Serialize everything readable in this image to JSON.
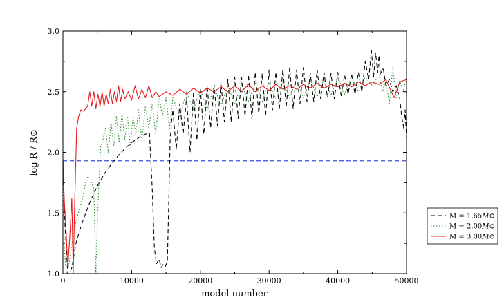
{
  "chart_data": {
    "type": "line",
    "title": "",
    "xlabel": "model number",
    "ylabel": "log R / R⊙",
    "xlim": [
      0,
      50000
    ],
    "ylim": [
      1.0,
      3.0
    ],
    "x_ticks": [
      0,
      10000,
      20000,
      30000,
      40000,
      50000
    ],
    "x_tick_labels": [
      "0",
      "10000",
      "20000",
      "30000",
      "40000",
      "50000"
    ],
    "y_ticks": [
      1.0,
      1.5,
      2.0,
      2.5,
      3.0
    ],
    "y_tick_labels": [
      "1.0",
      "1.5",
      "2.0",
      "2.5",
      "3.0"
    ],
    "grid": false,
    "legend_position": "outside-right",
    "reference_line": {
      "y": 1.93,
      "color": "#3a4ee6",
      "style": "dashed"
    },
    "series": [
      {
        "name": "M = 1.65M⊙",
        "label_main": "M = 1.65",
        "label_sym": "M⊙",
        "color": "#000000",
        "style": "dashed",
        "x": [
          0,
          300,
          700,
          1000,
          1300,
          1600,
          1900,
          2400,
          3000,
          4000,
          5000,
          6000,
          7000,
          8000,
          9000,
          10000,
          11000,
          12000,
          12600,
          13000,
          13300,
          13600,
          14000,
          14300,
          14600,
          14900,
          15200,
          15400,
          15600,
          15800,
          16000,
          16500,
          17000,
          17500,
          18000,
          18500,
          19000,
          19500,
          20000,
          20500,
          21000,
          21500,
          22000,
          22500,
          23000,
          23500,
          24000,
          24500,
          25000,
          25500,
          26000,
          26500,
          27000,
          27500,
          28000,
          28500,
          29000,
          29500,
          30000,
          30500,
          31000,
          31500,
          32000,
          32500,
          33000,
          33500,
          34000,
          34500,
          35000,
          35500,
          36000,
          36500,
          37000,
          37500,
          38000,
          38500,
          39000,
          39500,
          40000,
          40500,
          41000,
          41500,
          42000,
          42500,
          43000,
          43500,
          44000,
          44500,
          44900,
          45200,
          45500,
          45800,
          46000,
          46200,
          46600,
          47000,
          47500,
          48000,
          48500,
          49000,
          49300,
          49600,
          49800,
          50000
        ],
        "y": [
          1.93,
          1.4,
          1.0,
          1.0,
          1.05,
          1.15,
          1.25,
          1.35,
          1.45,
          1.6,
          1.72,
          1.82,
          1.9,
          1.97,
          2.03,
          2.08,
          2.12,
          2.15,
          2.16,
          1.7,
          1.22,
          1.08,
          1.12,
          1.05,
          1.08,
          1.06,
          1.1,
          1.6,
          2.1,
          2.25,
          2.35,
          2.02,
          2.4,
          2.15,
          2.45,
          2.0,
          2.5,
          2.1,
          2.52,
          2.15,
          2.55,
          2.2,
          2.56,
          2.22,
          2.58,
          2.25,
          2.6,
          2.25,
          2.62,
          2.28,
          2.62,
          2.3,
          2.64,
          2.28,
          2.66,
          2.32,
          2.65,
          2.3,
          2.68,
          2.35,
          2.66,
          2.36,
          2.68,
          2.38,
          2.7,
          2.36,
          2.68,
          2.4,
          2.7,
          2.42,
          2.65,
          2.42,
          2.68,
          2.44,
          2.66,
          2.45,
          2.65,
          2.44,
          2.66,
          2.46,
          2.64,
          2.48,
          2.65,
          2.48,
          2.66,
          2.5,
          2.75,
          2.6,
          2.84,
          2.62,
          2.82,
          2.66,
          2.8,
          2.64,
          2.7,
          2.55,
          2.6,
          2.5,
          2.55,
          2.45,
          2.3,
          2.2,
          2.35,
          2.12
        ],
        "line_chart": false
      },
      {
        "name": "M = 2.00M⊙",
        "label_main": "M = 2.00",
        "label_sym": "M⊙",
        "color": "#2e8b2e",
        "style": "dotted",
        "x": [
          0,
          200,
          500,
          800,
          1200,
          1600,
          2000,
          2500,
          3000,
          3300,
          3600,
          4000,
          4500,
          4800,
          5000,
          5200,
          5500,
          5800,
          6200,
          6600,
          7000,
          7400,
          7800,
          8200,
          8600,
          9000,
          9400,
          9800,
          10200,
          10600,
          11000,
          11500,
          12000,
          12500,
          13000,
          13500,
          14000,
          14500,
          15000,
          15500,
          16000,
          17000,
          18000,
          19000,
          20000,
          21000,
          22000,
          23000,
          24000,
          25000,
          26000,
          27000,
          28000,
          29000,
          30000,
          31000,
          32000,
          33000,
          34000,
          35000,
          36000,
          37000,
          38000,
          39000,
          40000,
          41000,
          42000,
          43000,
          44000,
          45000,
          46000,
          46500,
          47000,
          47500,
          48000,
          48500,
          49000,
          49500,
          50000
        ],
        "y": [
          1.9,
          1.2,
          1.0,
          1.05,
          1.2,
          1.35,
          1.45,
          1.55,
          1.65,
          1.75,
          1.8,
          1.78,
          1.7,
          1.0,
          1.4,
          1.7,
          2.05,
          2.1,
          2.2,
          2.0,
          2.25,
          2.05,
          2.3,
          2.08,
          2.32,
          2.1,
          2.3,
          2.05,
          2.3,
          2.15,
          2.35,
          2.1,
          2.38,
          2.2,
          2.4,
          2.15,
          2.45,
          2.3,
          2.45,
          2.2,
          2.45,
          2.3,
          2.5,
          2.35,
          2.52,
          2.35,
          2.55,
          2.38,
          2.55,
          2.4,
          2.56,
          2.42,
          2.57,
          2.42,
          2.58,
          2.44,
          2.58,
          2.45,
          2.6,
          2.45,
          2.6,
          2.46,
          2.6,
          2.47,
          2.62,
          2.48,
          2.62,
          2.5,
          2.62,
          2.55,
          2.64,
          2.5,
          2.6,
          2.4,
          2.7,
          2.45,
          2.6,
          2.5,
          2.62
        ]
      },
      {
        "name": "M = 3.00M⊙",
        "label_main": "M = 3.00",
        "label_sym": "M⊙",
        "color": "#e41a1c",
        "style": "solid",
        "x": [
          0,
          200,
          500,
          700,
          1000,
          1300,
          1500,
          1700,
          2000,
          2300,
          2600,
          3000,
          3300,
          3600,
          3900,
          4200,
          4500,
          4800,
          5100,
          5400,
          5700,
          6000,
          6300,
          6600,
          6900,
          7200,
          7500,
          7800,
          8100,
          8400,
          8700,
          9000,
          9500,
          10000,
          10500,
          11000,
          11500,
          12000,
          12500,
          13000,
          13500,
          14000,
          15000,
          16000,
          17000,
          18000,
          19000,
          20000,
          21000,
          22000,
          23000,
          24000,
          25000,
          26000,
          27000,
          28000,
          29000,
          30000,
          31000,
          32000,
          33000,
          34000,
          35000,
          36000,
          37000,
          38000,
          39000,
          40000,
          41000,
          42000,
          43000,
          44000,
          45000,
          46000,
          47000,
          47800,
          48200,
          49000,
          50000
        ],
        "y": [
          1.95,
          1.6,
          1.3,
          1.05,
          1.3,
          1.62,
          1.0,
          1.55,
          2.2,
          2.3,
          2.35,
          2.34,
          2.36,
          2.38,
          2.5,
          2.38,
          2.5,
          2.36,
          2.48,
          2.38,
          2.5,
          2.38,
          2.48,
          2.4,
          2.52,
          2.4,
          2.5,
          2.42,
          2.55,
          2.42,
          2.52,
          2.44,
          2.5,
          2.43,
          2.55,
          2.44,
          2.52,
          2.45,
          2.55,
          2.45,
          2.5,
          2.46,
          2.5,
          2.47,
          2.52,
          2.48,
          2.53,
          2.49,
          2.53,
          2.5,
          2.54,
          2.5,
          2.55,
          2.5,
          2.56,
          2.5,
          2.55,
          2.51,
          2.56,
          2.52,
          2.55,
          2.52,
          2.56,
          2.53,
          2.57,
          2.53,
          2.56,
          2.54,
          2.57,
          2.54,
          2.58,
          2.55,
          2.58,
          2.56,
          2.6,
          2.5,
          2.45,
          2.58,
          2.6
        ]
      }
    ]
  }
}
